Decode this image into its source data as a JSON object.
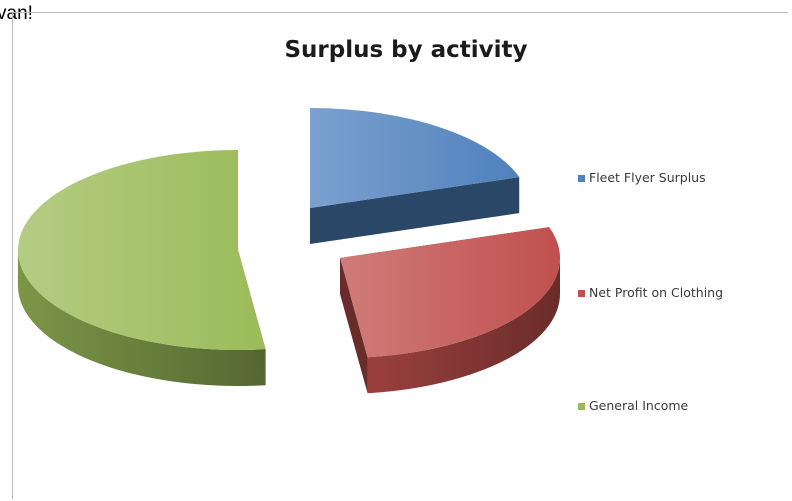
{
  "header": {
    "snippet": "van!"
  },
  "chart_data": {
    "type": "pie",
    "style": "3d-exploded",
    "title": "Surplus by activity",
    "categories": [
      "Fleet Flyer Surplus",
      "Net Profit on Clothing",
      "General Income"
    ],
    "values": [
      20,
      28,
      52
    ],
    "colors": [
      "#4f81bd",
      "#c0504d",
      "#9bbb59"
    ],
    "legend_position": "right"
  }
}
